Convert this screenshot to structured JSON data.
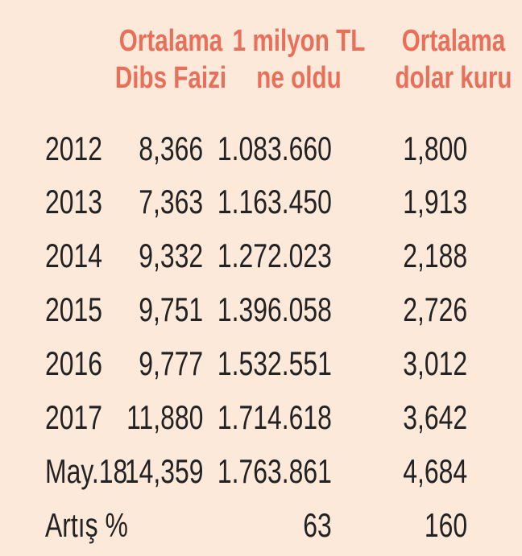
{
  "headers": {
    "dibs": [
      "Ortalama",
      "Dibs Faizi"
    ],
    "million": [
      "1 milyon TL",
      "ne oldu"
    ],
    "usd": [
      "Ortalama",
      "dolar kuru"
    ]
  },
  "rows": [
    {
      "label": "2012",
      "dibs": "8,366",
      "million": "1.083.660",
      "usd": "1,800"
    },
    {
      "label": "2013",
      "dibs": "7,363",
      "million": "1.163.450",
      "usd": "1,913"
    },
    {
      "label": "2014",
      "dibs": "9,332",
      "million": "1.272.023",
      "usd": "2,188"
    },
    {
      "label": "2015",
      "dibs": "9,751",
      "million": "1.396.058",
      "usd": "2,726"
    },
    {
      "label": "2016",
      "dibs": "9,777",
      "million": "1.532.551",
      "usd": "3,012"
    },
    {
      "label": "2017",
      "dibs": "11,880",
      "million": "1.714.618",
      "usd": "3,642"
    },
    {
      "label": "May.18",
      "dibs": "14,359",
      "million": "1.763.861",
      "usd": "4,684"
    },
    {
      "label": "Artış %",
      "dibs": "",
      "million": "63",
      "usd": "160"
    }
  ],
  "colors": {
    "background": "#fde9d9",
    "header": "#e8705a",
    "text": "#222222"
  }
}
